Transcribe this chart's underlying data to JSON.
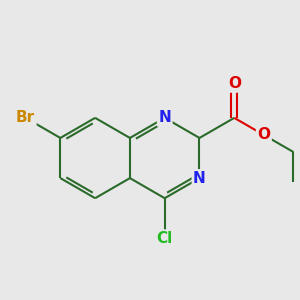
{
  "background_color": "#e8e8e8",
  "bond_color": "#2a6a2a",
  "bond_width": 1.5,
  "atom_colors": {
    "Br": "#cc8800",
    "Cl": "#22bb22",
    "N": "#2222ee",
    "O": "#dd0000",
    "C": "#000000"
  },
  "font_size": 11,
  "xlim": [
    -3.2,
    4.2
  ],
  "ylim": [
    -2.8,
    3.2
  ]
}
